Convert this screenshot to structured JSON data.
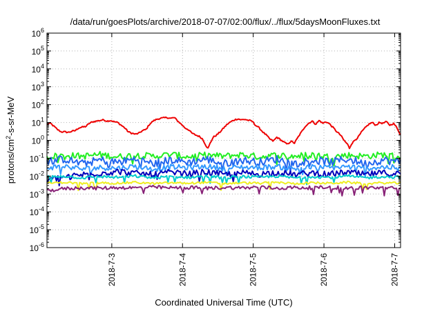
{
  "chart_data": {
    "type": "line",
    "title": "/data/run/goesPlots/archive/2018-07-07/02:00/flux/../flux/5daysMoonFluxes.txt",
    "xlabel": "Coordinated Universal Time (UTC)",
    "ylabel": {
      "base": "protons/cm",
      "sup": "2",
      "rest": "-s-sr-MeV"
    },
    "yscale": "log",
    "ylim_exp": [
      -6,
      6
    ],
    "ytick_exps": [
      "-6",
      "-5",
      "-4",
      "-3",
      "-2",
      "-1",
      "0",
      "1",
      "2",
      "3",
      "4",
      "5",
      "6"
    ],
    "ytick_base": "10",
    "xlim": [
      "2018-07-02T02:00",
      "2018-07-07T02:00"
    ],
    "xticks": [
      {
        "label": "2018-7-3",
        "date": "2018-07-03T00:00"
      },
      {
        "label": "2018-7-4",
        "date": "2018-07-04T00:00"
      },
      {
        "label": "2018-7-5",
        "date": "2018-07-05T00:00"
      },
      {
        "label": "2018-7-6",
        "date": "2018-07-06T00:00"
      },
      {
        "label": "2018-7-7",
        "date": "2018-07-07T00:00"
      }
    ],
    "grid": true,
    "series": [
      {
        "color": "#ee0000",
        "values": [
          [
            0.0,
            8
          ],
          [
            0.05,
            9
          ],
          [
            0.1,
            6
          ],
          [
            0.15,
            4
          ],
          [
            0.2,
            3
          ],
          [
            0.25,
            3
          ],
          [
            0.3,
            2.8
          ],
          [
            0.35,
            3.2
          ],
          [
            0.4,
            3.5
          ],
          [
            0.45,
            5
          ],
          [
            0.5,
            5.5
          ],
          [
            0.55,
            6
          ],
          [
            0.6,
            9
          ],
          [
            0.65,
            11
          ],
          [
            0.7,
            12
          ],
          [
            0.75,
            13
          ],
          [
            0.8,
            14
          ],
          [
            0.85,
            12
          ],
          [
            0.9,
            13
          ],
          [
            0.95,
            11
          ],
          [
            1.0,
            10
          ],
          [
            1.05,
            7
          ],
          [
            1.1,
            5
          ],
          [
            1.15,
            3
          ],
          [
            1.2,
            2.5
          ],
          [
            1.25,
            2.2
          ],
          [
            1.3,
            2.5
          ],
          [
            1.35,
            3.5
          ],
          [
            1.4,
            4
          ],
          [
            1.45,
            8
          ],
          [
            1.5,
            12
          ],
          [
            1.55,
            15
          ],
          [
            1.6,
            17
          ],
          [
            1.65,
            18
          ],
          [
            1.7,
            19
          ],
          [
            1.75,
            17
          ],
          [
            1.8,
            19
          ],
          [
            1.85,
            12
          ],
          [
            1.9,
            8
          ],
          [
            1.95,
            5
          ],
          [
            2.0,
            4
          ],
          [
            2.05,
            2.5
          ],
          [
            2.1,
            2
          ],
          [
            2.15,
            1.7
          ],
          [
            2.2,
            1.2
          ],
          [
            2.25,
            0.5
          ],
          [
            2.28,
            0.35
          ],
          [
            2.3,
            0.6
          ],
          [
            2.35,
            1.5
          ],
          [
            2.4,
            2
          ],
          [
            2.45,
            3
          ],
          [
            2.5,
            5
          ],
          [
            2.55,
            8
          ],
          [
            2.6,
            11
          ],
          [
            2.65,
            14
          ],
          [
            2.7,
            16
          ],
          [
            2.75,
            14
          ],
          [
            2.8,
            15
          ],
          [
            2.85,
            13
          ],
          [
            2.9,
            12
          ],
          [
            2.95,
            7
          ],
          [
            3.0,
            5
          ],
          [
            3.05,
            3
          ],
          [
            3.1,
            2
          ],
          [
            3.15,
            1.2
          ],
          [
            3.2,
            0.9
          ],
          [
            3.25,
            1.5
          ],
          [
            3.3,
            1.1
          ],
          [
            3.35,
            0.8
          ],
          [
            3.4,
            0.6
          ],
          [
            3.45,
            0.9
          ],
          [
            3.5,
            0.7
          ],
          [
            3.55,
            1.5
          ],
          [
            3.6,
            3
          ],
          [
            3.65,
            6
          ],
          [
            3.7,
            9
          ],
          [
            3.75,
            12
          ],
          [
            3.8,
            8
          ],
          [
            3.85,
            13
          ],
          [
            3.9,
            9
          ],
          [
            3.95,
            11
          ],
          [
            4.0,
            8
          ],
          [
            4.05,
            5
          ],
          [
            4.1,
            3
          ],
          [
            4.15,
            2
          ],
          [
            4.2,
            1
          ],
          [
            4.25,
            0.6
          ],
          [
            4.28,
            0.35
          ],
          [
            4.3,
            0.6
          ],
          [
            4.35,
            1
          ],
          [
            4.4,
            1.5
          ],
          [
            4.45,
            3
          ],
          [
            4.5,
            5
          ],
          [
            4.55,
            8
          ],
          [
            4.6,
            10
          ],
          [
            4.65,
            7
          ],
          [
            4.7,
            10
          ],
          [
            4.75,
            9
          ],
          [
            4.8,
            11
          ],
          [
            4.85,
            7
          ],
          [
            4.9,
            9
          ],
          [
            4.95,
            5
          ],
          [
            5.0,
            2
          ]
        ]
      },
      {
        "color": "#22ee22",
        "values": [
          [
            0.0,
            0.12
          ],
          [
            0.25,
            0.15
          ],
          [
            0.5,
            0.13
          ],
          [
            0.75,
            0.16
          ],
          [
            1.0,
            0.12
          ],
          [
            1.25,
            0.15
          ],
          [
            1.5,
            0.13
          ],
          [
            1.75,
            0.16
          ],
          [
            2.0,
            0.12
          ],
          [
            2.25,
            0.15
          ],
          [
            2.5,
            0.13
          ],
          [
            2.75,
            0.16
          ],
          [
            3.0,
            0.12
          ],
          [
            3.25,
            0.15
          ],
          [
            3.5,
            0.13
          ],
          [
            3.75,
            0.16
          ],
          [
            4.0,
            0.12
          ],
          [
            4.25,
            0.15
          ],
          [
            4.5,
            0.13
          ],
          [
            4.75,
            0.16
          ],
          [
            5.0,
            0.12
          ]
        ]
      },
      {
        "color": "#2266ee",
        "values": [
          [
            0.0,
            0.07
          ],
          [
            0.25,
            0.09
          ],
          [
            0.5,
            0.05
          ],
          [
            0.75,
            0.08
          ],
          [
            1.0,
            0.06
          ],
          [
            1.25,
            0.09
          ],
          [
            1.5,
            0.05
          ],
          [
            1.75,
            0.08
          ],
          [
            2.0,
            0.06
          ],
          [
            2.25,
            0.09
          ],
          [
            2.5,
            0.05
          ],
          [
            2.75,
            0.08
          ],
          [
            3.0,
            0.06
          ],
          [
            3.25,
            0.09
          ],
          [
            3.5,
            0.05
          ],
          [
            3.75,
            0.08
          ],
          [
            4.0,
            0.06
          ],
          [
            4.25,
            0.09
          ],
          [
            4.5,
            0.05
          ],
          [
            4.75,
            0.08
          ],
          [
            5.0,
            0.06
          ]
        ]
      },
      {
        "color": "#3399ff",
        "values": [
          [
            0.0,
            0.03
          ],
          [
            0.25,
            0.035
          ],
          [
            0.5,
            0.025
          ],
          [
            0.75,
            0.03
          ],
          [
            1.0,
            0.028
          ],
          [
            1.25,
            0.035
          ],
          [
            1.5,
            0.025
          ],
          [
            1.75,
            0.032
          ],
          [
            2.0,
            0.03
          ],
          [
            2.25,
            0.035
          ],
          [
            2.5,
            0.027
          ],
          [
            2.75,
            0.032
          ],
          [
            3.0,
            0.03
          ],
          [
            3.25,
            0.034
          ],
          [
            3.5,
            0.026
          ],
          [
            3.75,
            0.032
          ],
          [
            4.0,
            0.03
          ],
          [
            4.25,
            0.034
          ],
          [
            4.5,
            0.027
          ],
          [
            4.75,
            0.032
          ],
          [
            5.0,
            0.03
          ]
        ]
      },
      {
        "color": "#0000bb",
        "values": [
          [
            0.0,
            0.006
          ],
          [
            0.25,
            0.009
          ],
          [
            0.5,
            0.012
          ],
          [
            0.75,
            0.015
          ],
          [
            1.0,
            0.018
          ],
          [
            1.25,
            0.014
          ],
          [
            1.5,
            0.012
          ],
          [
            1.75,
            0.016
          ],
          [
            2.0,
            0.013
          ],
          [
            2.25,
            0.017
          ],
          [
            2.5,
            0.012
          ],
          [
            2.75,
            0.015
          ],
          [
            3.0,
            0.013
          ],
          [
            3.25,
            0.016
          ],
          [
            3.5,
            0.012
          ],
          [
            3.75,
            0.015
          ],
          [
            4.0,
            0.013
          ],
          [
            4.25,
            0.016
          ],
          [
            4.5,
            0.012
          ],
          [
            4.75,
            0.015
          ],
          [
            5.0,
            0.013
          ]
        ]
      },
      {
        "color": "#00cccc",
        "values": [
          [
            0.0,
            0.009
          ],
          [
            0.25,
            0.01
          ],
          [
            0.5,
            0.008
          ],
          [
            0.75,
            0.0095
          ],
          [
            1.0,
            0.0085
          ],
          [
            1.25,
            0.01
          ],
          [
            1.5,
            0.008
          ],
          [
            1.75,
            0.0095
          ],
          [
            2.0,
            0.0085
          ],
          [
            2.25,
            0.01
          ],
          [
            2.5,
            0.008
          ],
          [
            2.75,
            0.0095
          ],
          [
            3.0,
            0.0085
          ],
          [
            3.25,
            0.01
          ],
          [
            3.5,
            0.008
          ],
          [
            3.75,
            0.0095
          ],
          [
            4.0,
            0.0085
          ],
          [
            4.25,
            0.01
          ],
          [
            4.5,
            0.008
          ],
          [
            4.75,
            0.0095
          ],
          [
            5.0,
            0.0085
          ]
        ]
      },
      {
        "color": "#eeee22",
        "values": [
          [
            0.0,
            0.004
          ],
          [
            0.25,
            0.0045
          ],
          [
            0.5,
            0.0038
          ],
          [
            0.75,
            0.0042
          ],
          [
            1.0,
            0.004
          ],
          [
            1.25,
            0.0045
          ],
          [
            1.5,
            0.0038
          ],
          [
            1.75,
            0.0042
          ],
          [
            2.0,
            0.004
          ],
          [
            2.25,
            0.0045
          ],
          [
            2.5,
            0.0038
          ],
          [
            2.75,
            0.0042
          ],
          [
            3.0,
            0.004
          ],
          [
            3.25,
            0.0045
          ],
          [
            3.5,
            0.0038
          ],
          [
            3.75,
            0.0042
          ],
          [
            4.0,
            0.004
          ],
          [
            4.25,
            0.0045
          ],
          [
            4.5,
            0.0038
          ],
          [
            4.75,
            0.0042
          ],
          [
            5.0,
            0.004
          ]
        ]
      },
      {
        "color": "#882277",
        "values": [
          [
            0.0,
            0.0015
          ],
          [
            0.25,
            0.002
          ],
          [
            0.5,
            0.0022
          ],
          [
            0.75,
            0.0021
          ],
          [
            1.0,
            0.0023
          ],
          [
            1.25,
            0.0022
          ],
          [
            1.5,
            0.0024
          ],
          [
            1.75,
            0.0022
          ],
          [
            2.0,
            0.0023
          ],
          [
            2.25,
            0.0021
          ],
          [
            2.5,
            0.0023
          ],
          [
            2.75,
            0.0022
          ],
          [
            3.0,
            0.0024
          ],
          [
            3.25,
            0.0021
          ],
          [
            3.5,
            0.0023
          ],
          [
            3.75,
            0.0022
          ],
          [
            4.0,
            0.0024
          ],
          [
            4.25,
            0.0021
          ],
          [
            4.5,
            0.0023
          ],
          [
            4.75,
            0.0022
          ],
          [
            5.0,
            0.002
          ]
        ]
      }
    ]
  }
}
